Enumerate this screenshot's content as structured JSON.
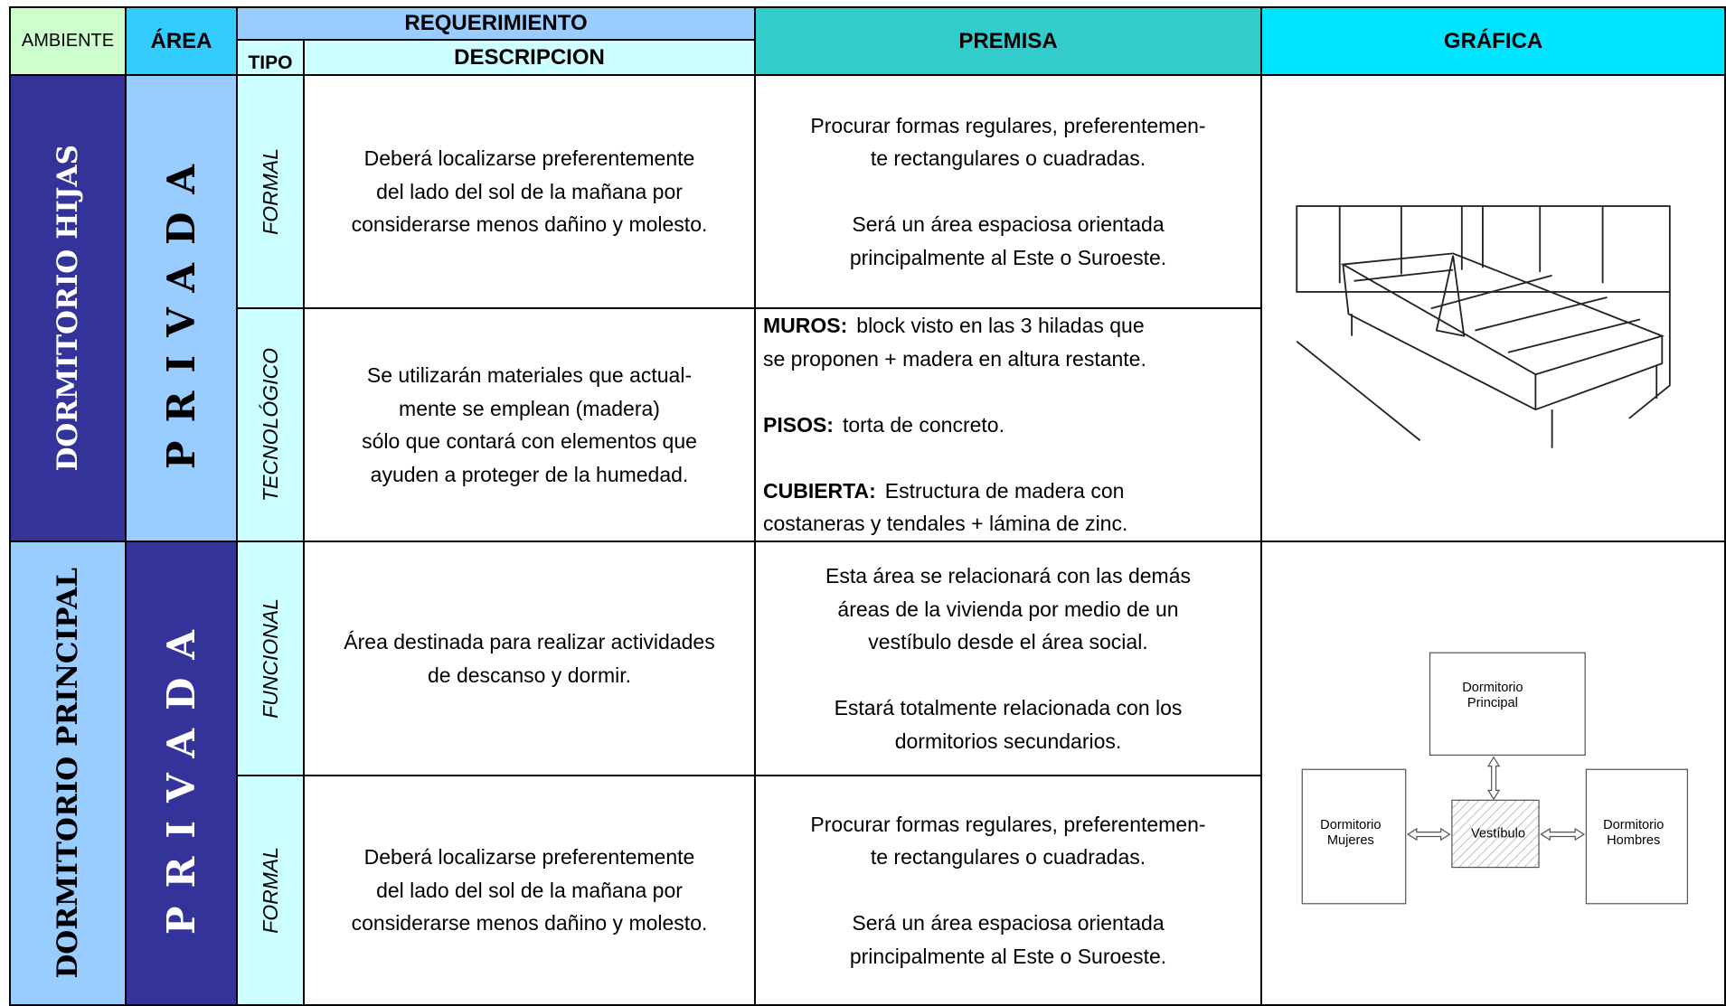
{
  "header": {
    "ambiente": "AMBIENTE",
    "area": "ÁREA",
    "requerimiento": "REQUERIMIENTO",
    "tipo": "TIPO",
    "descripcion": "DESCRIPCION",
    "premisa": "PREMISA",
    "grafica": "GRÁFICA"
  },
  "groups": [
    {
      "ambiente": "DORMITORIO HIJAS",
      "area": "PRIVADA",
      "rows": [
        {
          "tipo": "FORMAL",
          "descripcion": [
            "Deberá localizarse preferentemente",
            "del lado del sol de la mañana por",
            "considerarse menos dañino y molesto."
          ],
          "premisa": [
            {
              "lines": [
                "Procurar formas regulares, preferentemen-",
                "te rectangulares o cuadradas."
              ]
            },
            {
              "lines": [
                "Será un área espaciosa orientada",
                "principalmente al Este o Suroeste."
              ]
            }
          ]
        },
        {
          "tipo": "TECNOLÓGICO",
          "descripcion": [
            "Se utilizarán materiales que actual-",
            "mente se emplean (madera)",
            "sólo que contará con elementos que",
            "ayuden a proteger de la humedad."
          ],
          "premisa": [
            {
              "label": "MUROS:",
              "lines": [
                "block visto en las 3 hiladas que",
                "se proponen + madera en altura restante."
              ]
            },
            {
              "label": "PISOS:",
              "lines": [
                "torta de concreto."
              ]
            },
            {
              "label": "CUBIERTA:",
              "lines": [
                "Estructura de madera con",
                "costaneras y tendales + lámina de zinc."
              ]
            }
          ]
        }
      ]
    },
    {
      "ambiente": "DORMITORIO PRINCIPAL",
      "area": "PRIVADA",
      "rows": [
        {
          "tipo": "FUNCIONAL",
          "descripcion": [
            "Área destinada para realizar actividades",
            "de descanso y dormir."
          ],
          "premisa": [
            {
              "lines": [
                "Esta área se relacionará con las demás",
                "áreas de la vivienda por medio de un",
                "vestíbulo desde el área social."
              ]
            },
            {
              "lines": [
                "Estará totalmente relacionada con los",
                "dormitorios  secundarios."
              ]
            }
          ]
        },
        {
          "tipo": "FORMAL",
          "descripcion": [
            "Deberá localizarse preferentemente",
            "del lado del sol de la mañana por",
            "considerarse menos dañino y molesto."
          ],
          "premisa": [
            {
              "lines": [
                "Procurar formas regulares, preferentemen-",
                "te rectangulares o cuadradas."
              ]
            },
            {
              "lines": [
                "Será un área espaciosa orientada",
                "principalmente al Este o Suroeste."
              ]
            }
          ]
        }
      ],
      "diagram": {
        "principal": [
          "Dormitorio",
          "Principal"
        ],
        "mujeres": [
          "Dormitorio",
          "Mujeres"
        ],
        "vestibulo": [
          "Vestíbulo"
        ],
        "hombres": [
          "Dormitorio",
          "Hombres"
        ]
      }
    }
  ]
}
